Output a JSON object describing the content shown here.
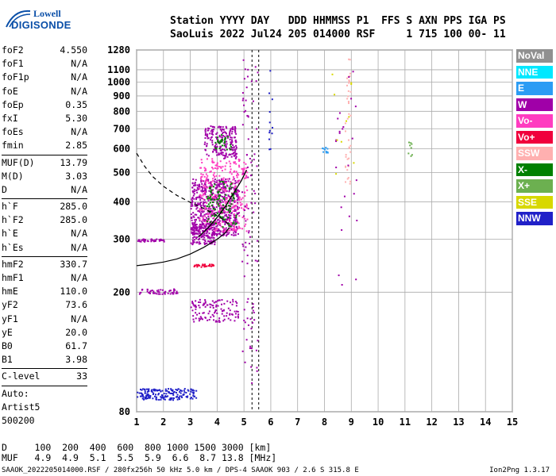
{
  "logo": {
    "line1": "Lowell",
    "line2": "DIGISONDE"
  },
  "header": {
    "labels": "Station YYYY DAY   DDD HHMMSS P1  FFS S AXN PPS IGA PS",
    "values": "SaoLuis 2022 Jul24 205 014000 RSF     1 715 100 00- 11"
  },
  "params": [
    {
      "name": "foF2",
      "value": "4.550"
    },
    {
      "name": "foF1",
      "value": "N/A"
    },
    {
      "name": "foF1p",
      "value": "N/A"
    },
    {
      "name": "foE",
      "value": "N/A"
    },
    {
      "name": "foEp",
      "value": "0.35"
    },
    {
      "name": "fxI",
      "value": "5.30"
    },
    {
      "name": "foEs",
      "value": "N/A"
    },
    {
      "name": "fmin",
      "value": "2.85"
    },
    {
      "name": "MUF(D)",
      "value": "13.79"
    },
    {
      "name": "M(D)",
      "value": "3.03"
    },
    {
      "name": "D",
      "value": "N/A"
    },
    {
      "name": "h`F",
      "value": "285.0"
    },
    {
      "name": "h`F2",
      "value": "285.0"
    },
    {
      "name": "h`E",
      "value": "N/A"
    },
    {
      "name": "h`Es",
      "value": "N/A"
    },
    {
      "name": "hmF2",
      "value": "330.7"
    },
    {
      "name": "hmF1",
      "value": "N/A"
    },
    {
      "name": "hmE",
      "value": "110.0"
    },
    {
      "name": "yF2",
      "value": "73.6"
    },
    {
      "name": "yF1",
      "value": "N/A"
    },
    {
      "name": "yE",
      "value": "20.0"
    },
    {
      "name": "B0",
      "value": "61.7"
    },
    {
      "name": "B1",
      "value": "3.98"
    },
    {
      "name": "C-level",
      "value": "33"
    }
  ],
  "auto": {
    "label": "Auto:",
    "artist": "Artist5",
    "version": "500200"
  },
  "legend": [
    {
      "label": "NoVal",
      "color": "#909090"
    },
    {
      "label": "NNE",
      "color": "#00e8ff"
    },
    {
      "label": "E",
      "color": "#2b9cf4"
    },
    {
      "label": "W",
      "color": "#a000a8"
    },
    {
      "label": "Vo-",
      "color": "#ff3cc0"
    },
    {
      "label": "Vo+",
      "color": "#f0003c"
    },
    {
      "label": "SSW",
      "color": "#ffb0b0"
    },
    {
      "label": "X-",
      "color": "#008000"
    },
    {
      "label": "X+",
      "color": "#6cb050"
    },
    {
      "label": "SSE",
      "color": "#d8d800"
    },
    {
      "label": "NNW",
      "color": "#2020c8"
    }
  ],
  "muf_table": {
    "d_line": "D     100  200  400  600  800 1000 1500 3000 [km]",
    "muf_line": "MUF   4.9  4.9  5.1  5.5  5.9  6.6  8.7 13.8 [MHz]"
  },
  "footer": "SAAOK_2022205014000.RSF / 280fx256h 50 kHz 5.0 km / DPS-4 SAAOK 903 / 2.6 S 315.8 E",
  "footer_version": "Ion2Png 1.3.17",
  "chart_data": {
    "type": "scatter",
    "xlim": [
      1,
      15
    ],
    "ylim": [
      80,
      1280
    ],
    "x_ticks": [
      1,
      2,
      3,
      4,
      5,
      6,
      7,
      8,
      9,
      10,
      11,
      12,
      13,
      14,
      15
    ],
    "y_ticks": [
      80,
      200,
      300,
      400,
      500,
      600,
      700,
      800,
      900,
      1000,
      1100,
      1280
    ],
    "y_scale": "log",
    "grid": true,
    "vertical_lines": [
      5.3,
      5.55
    ],
    "profile_solid": [
      [
        1.0,
        245
      ],
      [
        1.5,
        248
      ],
      [
        2.0,
        252
      ],
      [
        2.5,
        258
      ],
      [
        3.0,
        268
      ],
      [
        3.5,
        282
      ],
      [
        4.0,
        300
      ],
      [
        4.3,
        315
      ],
      [
        4.45,
        328
      ]
    ],
    "profile_dashed": [
      [
        1.0,
        580
      ],
      [
        1.3,
        525
      ],
      [
        1.6,
        485
      ],
      [
        2.0,
        450
      ],
      [
        2.5,
        420
      ],
      [
        3.0,
        398
      ],
      [
        3.5,
        380
      ],
      [
        4.0,
        360
      ],
      [
        4.3,
        345
      ],
      [
        4.45,
        333
      ]
    ],
    "trace_line": [
      [
        3.3,
        305
      ],
      [
        3.7,
        330
      ],
      [
        4.0,
        355
      ],
      [
        4.3,
        385
      ],
      [
        4.6,
        425
      ],
      [
        4.9,
        470
      ],
      [
        5.1,
        510
      ]
    ],
    "clusters": [
      {
        "series": "W",
        "x": [
          3.0,
          4.8
        ],
        "y": [
          310,
          480
        ],
        "n": 620
      },
      {
        "series": "Vo-",
        "x": [
          3.3,
          5.1
        ],
        "y": [
          320,
          560
        ],
        "n": 320
      },
      {
        "series": "X-",
        "x": [
          3.6,
          4.7
        ],
        "y": [
          330,
          470
        ],
        "n": 110
      },
      {
        "series": "W",
        "x": [
          3.0,
          3.9
        ],
        "y": [
          290,
          340
        ],
        "n": 150
      },
      {
        "series": "W",
        "x": [
          3.5,
          4.7
        ],
        "y": [
          560,
          720
        ],
        "n": 200
      },
      {
        "series": "X-",
        "x": [
          3.9,
          4.5
        ],
        "y": [
          600,
          680
        ],
        "n": 30
      },
      {
        "series": "W",
        "x": [
          3.0,
          4.8
        ],
        "y": [
          160,
          190
        ],
        "n": 120
      },
      {
        "series": "NNW",
        "x": [
          1.0,
          3.2
        ],
        "y": [
          88,
          96
        ],
        "n": 170
      },
      {
        "series": "W",
        "x": [
          1.0,
          2.0
        ],
        "y": [
          296,
          302
        ],
        "n": 40
      },
      {
        "series": "W",
        "x": [
          1.0,
          2.5
        ],
        "y": [
          198,
          206
        ],
        "n": 50
      },
      {
        "series": "Vo+",
        "x": [
          3.1,
          3.9
        ],
        "y": [
          243,
          249
        ],
        "n": 30
      },
      {
        "series": "W",
        "x": [
          4.9,
          5.5
        ],
        "y": [
          100,
          1280
        ],
        "n": 90
      },
      {
        "series": "NNW",
        "x": [
          5.9,
          6.1
        ],
        "y": [
          600,
          1100
        ],
        "n": 12
      },
      {
        "series": "E",
        "x": [
          7.9,
          8.1
        ],
        "y": [
          580,
          610
        ],
        "n": 10
      },
      {
        "series": "SSW",
        "x": [
          8.75,
          8.95
        ],
        "y": [
          450,
          1260
        ],
        "n": 40
      },
      {
        "series": "W",
        "x": [
          8.4,
          9.2
        ],
        "y": [
          200,
          1200
        ],
        "n": 25
      },
      {
        "series": "SSE",
        "x": [
          8.2,
          9.1
        ],
        "y": [
          400,
          1100
        ],
        "n": 10
      },
      {
        "series": "X+",
        "x": [
          11.1,
          11.25
        ],
        "y": [
          570,
          640
        ],
        "n": 8
      }
    ]
  }
}
